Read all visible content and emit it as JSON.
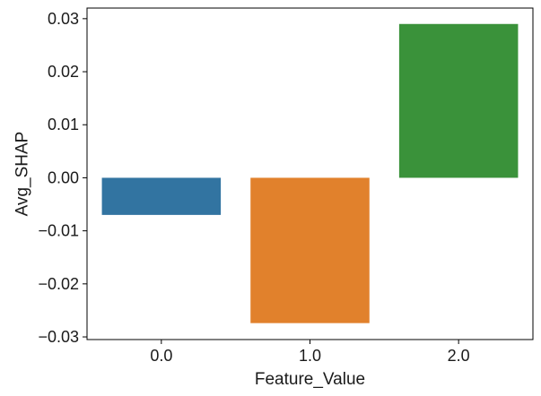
{
  "chart_data": {
    "type": "bar",
    "categories": [
      "0.0",
      "1.0",
      "2.0"
    ],
    "values": [
      -0.007,
      -0.0274,
      0.029
    ],
    "colors": [
      "#3274a1",
      "#e1812c",
      "#3a923a"
    ],
    "xlabel": "Feature_Value",
    "ylabel": "Avg_SHAP",
    "ylim": [
      -0.0305,
      0.032
    ],
    "yticks": [
      -0.03,
      -0.02,
      -0.01,
      0.0,
      0.01,
      0.02,
      0.03
    ],
    "ytick_labels": [
      "−0.03",
      "−0.02",
      "−0.01",
      "0.00",
      "0.01",
      "0.02",
      "0.03"
    ],
    "grid": false,
    "legend": "none"
  }
}
